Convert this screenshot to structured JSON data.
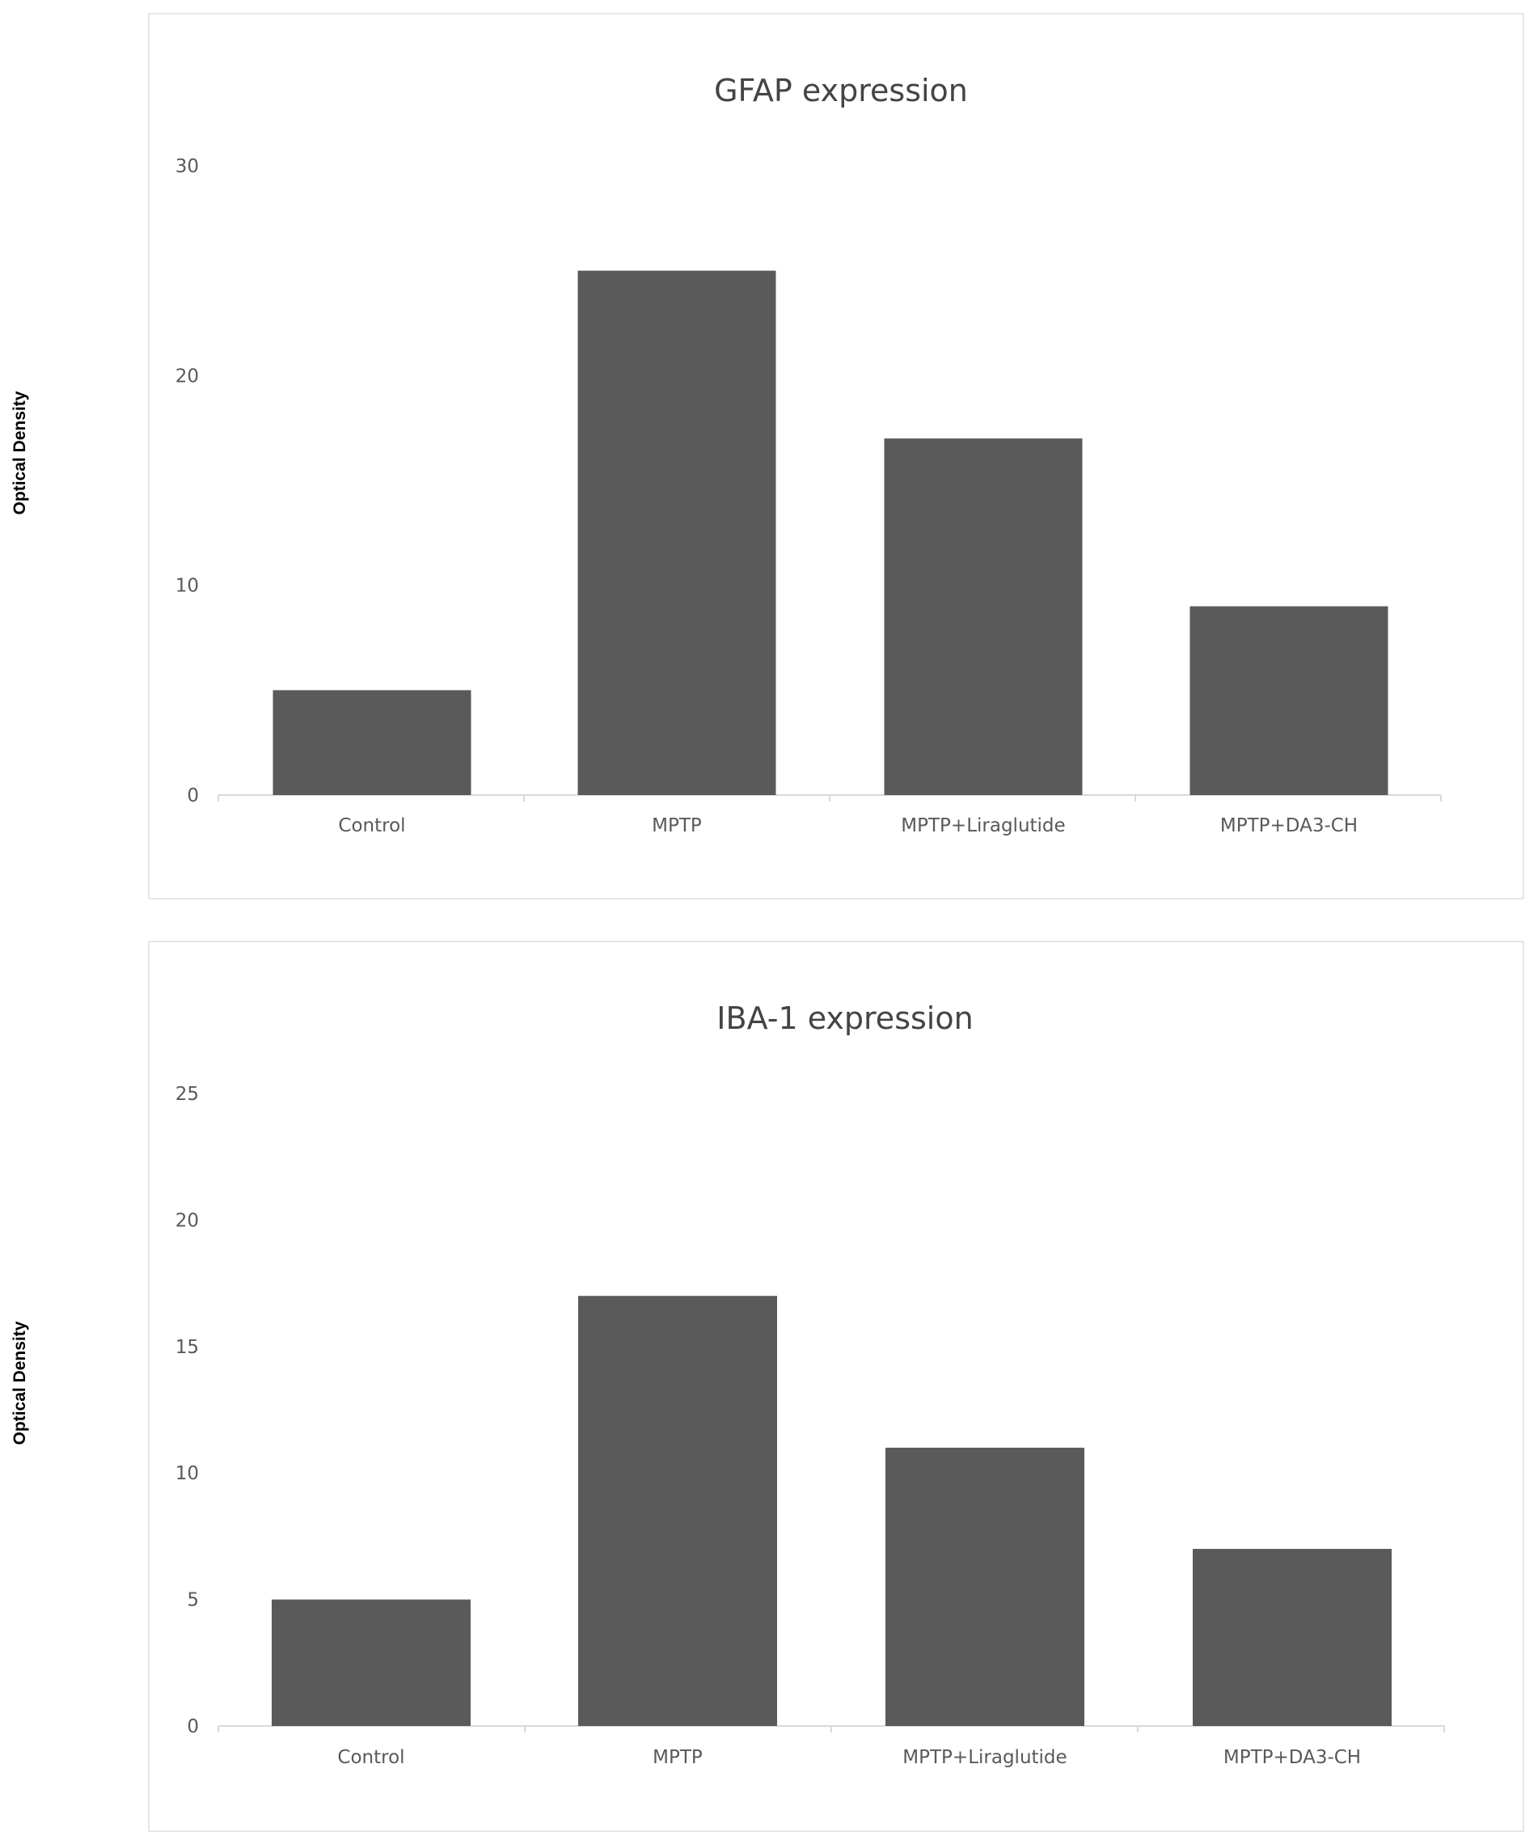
{
  "chart_data": [
    {
      "type": "bar",
      "title": "GFAP expression",
      "ylabel": "Optical Density",
      "xlabel": "",
      "categories": [
        "Control",
        "MPTP",
        "MPTP+Liraglutide",
        "MPTP+DA3-CH"
      ],
      "values": [
        5,
        25,
        17,
        9
      ],
      "yticks": [
        "0",
        "10",
        "20",
        "30"
      ],
      "ylim": [
        0,
        30
      ],
      "grid": false,
      "bar_color": "#5a5a5a"
    },
    {
      "type": "bar",
      "title": "IBA-1 expression",
      "ylabel": "Optical Density",
      "xlabel": "",
      "categories": [
        "Control",
        "MPTP",
        "MPTP+Liraglutide",
        "MPTP+DA3-CH"
      ],
      "values": [
        5,
        17,
        11,
        7
      ],
      "yticks": [
        "0",
        "5",
        "10",
        "15",
        "20",
        "25"
      ],
      "ylim": [
        0,
        25
      ],
      "grid": false,
      "bar_color": "#5a5a5a"
    }
  ]
}
